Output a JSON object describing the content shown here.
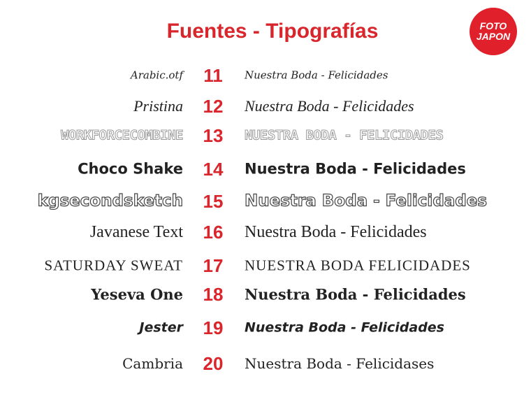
{
  "header": {
    "title": "Fuentes - Tipografías",
    "logo": [
      "FOTO",
      "JAPON"
    ]
  },
  "rows": [
    {
      "font": "Arabic.otf",
      "number": 11,
      "sample": "Nuestra Boda - Felicidades"
    },
    {
      "font": "Pristina",
      "number": 12,
      "sample": "Nuestra Boda - Felicidades"
    },
    {
      "font": "WORKFORCECOMBINE",
      "number": 13,
      "sample": "NUESTRA BODA - FELICIDADES"
    },
    {
      "font": "Choco Shake",
      "number": 14,
      "sample": "Nuestra Boda - Felicidades"
    },
    {
      "font": "kgsecondsketch",
      "number": 15,
      "sample": "Nuestra Boda - Felicidades"
    },
    {
      "font": "Javanese Text",
      "number": 16,
      "sample": "Nuestra Boda - Felicidades"
    },
    {
      "font": "SATURDAY SWEAT",
      "number": 17,
      "sample": "NUESTRA BODA  FELICIDADES"
    },
    {
      "font": "Yeseva One",
      "number": 18,
      "sample": "Nuestra Boda - Felicidades"
    },
    {
      "font": "Jester",
      "number": 19,
      "sample": "Nuestra Boda - Felicidades"
    },
    {
      "font": "Cambria",
      "number": 20,
      "sample": "Nuestra Boda - Felicidases"
    }
  ]
}
